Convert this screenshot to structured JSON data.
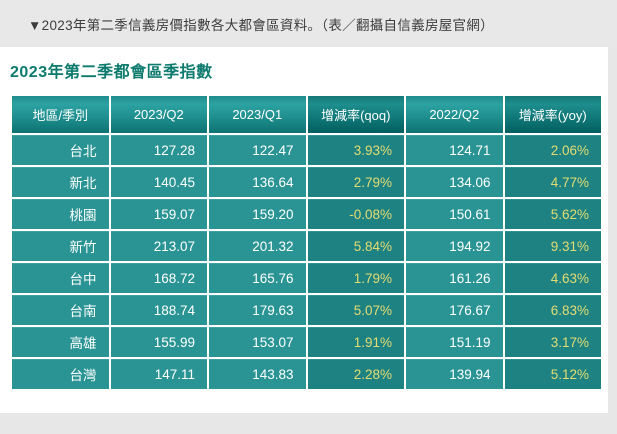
{
  "page": {
    "caption": "▼2023年第二季信義房價指數各大都會區資料。（表／翻攝自信義房屋官網）",
    "title": "2023年第二季都會區季指數"
  },
  "colors": {
    "caption_bg": "#e8e8e8",
    "panel_bg": "#ffffff",
    "title_text": "#0d7a6e",
    "header_teal": "#1e8d8d",
    "header_teal_dark": "#0f7777",
    "cell_teal": "#2a9494",
    "cell_teal_dark": "#1e8282",
    "value_text": "#ffffff",
    "percent_text": "#e3dc72",
    "grid_line": "#ffffff"
  },
  "chart_data": {
    "type": "table",
    "title": "2023年第二季都會區季指數",
    "columns": [
      "地區/季別",
      "2023/Q2",
      "2023/Q1",
      "增減率(qoq)",
      "2022/Q2",
      "增減率(yoy)"
    ],
    "dark_column_indexes": [
      3,
      5
    ],
    "rows": [
      [
        "台北",
        "127.28",
        "122.47",
        "3.93%",
        "124.71",
        "2.06%"
      ],
      [
        "新北",
        "140.45",
        "136.64",
        "2.79%",
        "134.06",
        "4.77%"
      ],
      [
        "桃園",
        "159.07",
        "159.20",
        "-0.08%",
        "150.61",
        "5.62%"
      ],
      [
        "新竹",
        "213.07",
        "201.32",
        "5.84%",
        "194.92",
        "9.31%"
      ],
      [
        "台中",
        "168.72",
        "165.76",
        "1.79%",
        "161.26",
        "4.63%"
      ],
      [
        "台南",
        "188.74",
        "179.63",
        "5.07%",
        "176.67",
        "6.83%"
      ],
      [
        "高雄",
        "155.99",
        "153.07",
        "1.91%",
        "151.19",
        "3.17%"
      ],
      [
        "台灣",
        "147.11",
        "143.83",
        "2.28%",
        "139.94",
        "5.12%"
      ]
    ]
  }
}
